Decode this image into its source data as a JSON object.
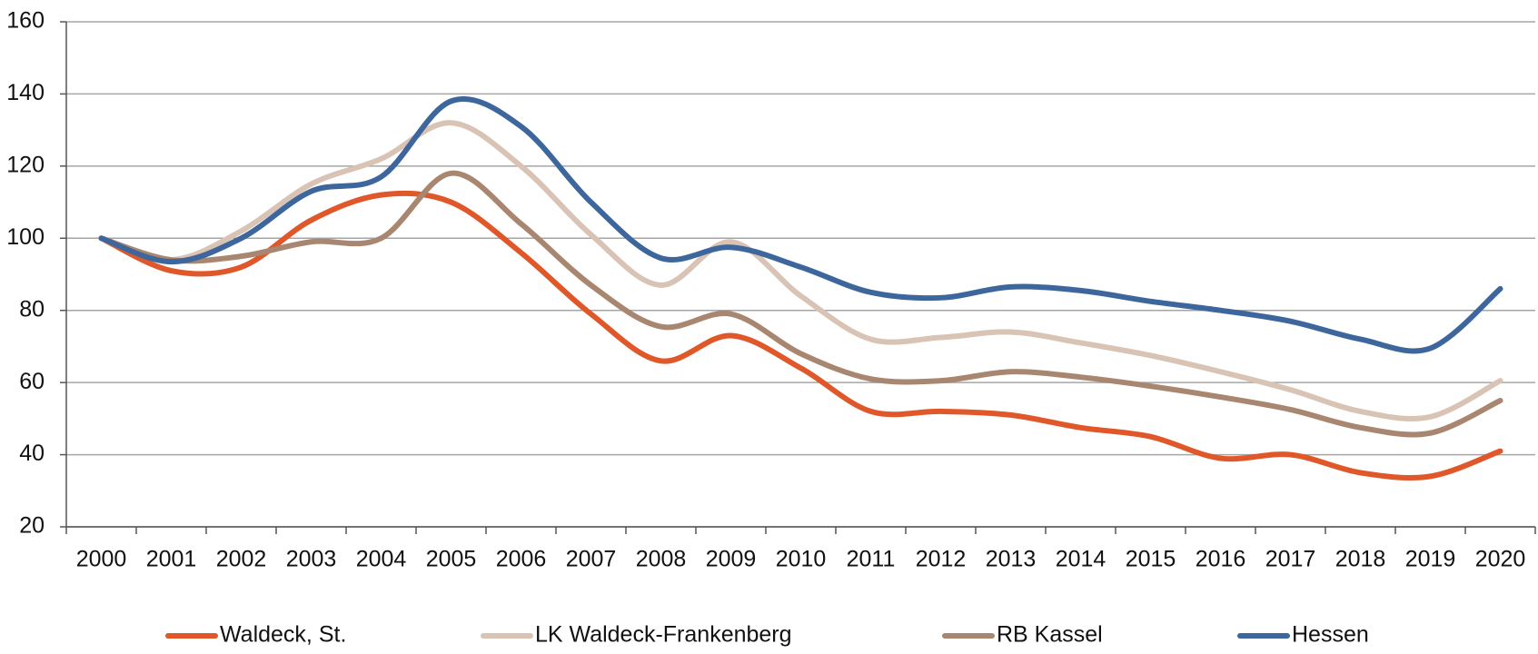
{
  "chart_data": {
    "type": "line",
    "categories": [
      "2000",
      "2001",
      "2002",
      "2003",
      "2004",
      "2005",
      "2006",
      "2007",
      "2008",
      "2009",
      "2010",
      "2011",
      "2012",
      "2013",
      "2014",
      "2015",
      "2016",
      "2017",
      "2018",
      "2019",
      "2020"
    ],
    "series": [
      {
        "name": "Waldeck, St.",
        "color": "#e0572a",
        "values": [
          100,
          91,
          92,
          105,
          112,
          110,
          96,
          79,
          66,
          73,
          64,
          52,
          52,
          51,
          47.5,
          45,
          39,
          40,
          35,
          34,
          41
        ]
      },
      {
        "name": "LK Waldeck-Frankenberg",
        "color": "#d9c3b5",
        "values": [
          100,
          94,
          102,
          115,
          122,
          132,
          120,
          101,
          87,
          99,
          84,
          72,
          72.5,
          74,
          71,
          67.5,
          63,
          58,
          52,
          50.5,
          60.5
        ]
      },
      {
        "name": "RB Kassel",
        "color": "#a88670",
        "values": [
          100,
          94,
          95,
          99,
          100,
          118,
          104,
          87,
          75.5,
          79,
          68,
          61,
          60.5,
          63,
          61.5,
          59,
          56,
          52.5,
          47.5,
          46,
          55
        ]
      },
      {
        "name": "Hessen",
        "color": "#3d679c",
        "values": [
          100,
          93.5,
          100,
          113,
          117,
          138,
          131,
          110,
          94.5,
          97.5,
          92,
          85,
          83.5,
          86.5,
          85.5,
          82.5,
          80,
          77,
          72,
          69.5,
          86
        ]
      }
    ],
    "ylim": [
      20,
      160
    ],
    "yticks": [
      20,
      40,
      60,
      80,
      100,
      120,
      140,
      160
    ],
    "grid": true,
    "legend": "bottom"
  }
}
